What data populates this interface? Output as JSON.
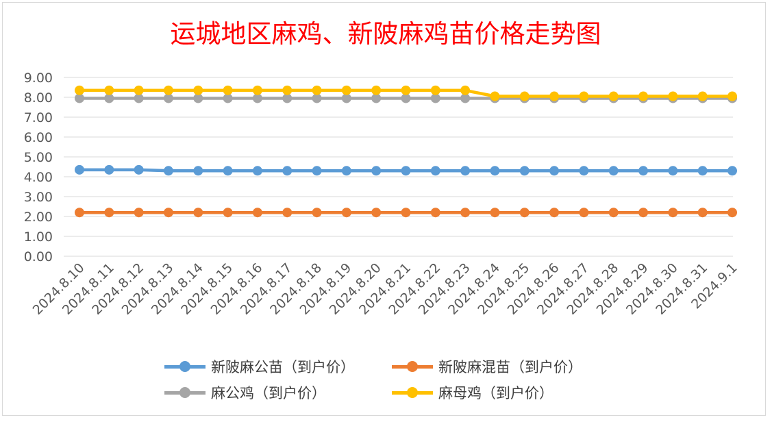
{
  "chart_data": {
    "type": "line",
    "title": "运城地区麻鸡、新陂麻鸡苗价格走势图",
    "title_color": "#ff0000",
    "categories": [
      "2024.8.10",
      "2024.8.11",
      "2024.8.12",
      "2024.8.13",
      "2024.8.14",
      "2024.8.15",
      "2024.8.16",
      "2024.8.17",
      "2024.8.18",
      "2024.8.19",
      "2024.8.20",
      "2024.8.21",
      "2024.8.22",
      "2024.8.23",
      "2024.8.24",
      "2024.8.25",
      "2024.8.26",
      "2024.8.27",
      "2024.8.28",
      "2024.8.29",
      "2024.8.30",
      "2024.8.31",
      "2024.9.1"
    ],
    "ylim": [
      0,
      9
    ],
    "yticks": [
      "0.00",
      "1.00",
      "2.00",
      "3.00",
      "4.00",
      "5.00",
      "6.00",
      "7.00",
      "8.00",
      "9.00"
    ],
    "grid": true,
    "legend_position": "bottom",
    "series": [
      {
        "name": "新陂麻公苗（到户价）",
        "color": "#5b9bd5",
        "values": [
          4.35,
          4.35,
          4.35,
          4.3,
          4.3,
          4.3,
          4.3,
          4.3,
          4.3,
          4.3,
          4.3,
          4.3,
          4.3,
          4.3,
          4.3,
          4.3,
          4.3,
          4.3,
          4.3,
          4.3,
          4.3,
          4.3,
          4.3
        ]
      },
      {
        "name": "新陂麻混苗（到户价）",
        "color": "#ed7d31",
        "values": [
          2.2,
          2.2,
          2.2,
          2.2,
          2.2,
          2.2,
          2.2,
          2.2,
          2.2,
          2.2,
          2.2,
          2.2,
          2.2,
          2.2,
          2.2,
          2.2,
          2.2,
          2.2,
          2.2,
          2.2,
          2.2,
          2.2,
          2.2
        ]
      },
      {
        "name": "麻公鸡（到户价）",
        "color": "#a5a5a5",
        "values": [
          7.95,
          7.95,
          7.95,
          7.95,
          7.95,
          7.95,
          7.95,
          7.95,
          7.95,
          7.95,
          7.95,
          7.95,
          7.95,
          7.95,
          7.95,
          7.95,
          7.95,
          7.95,
          7.95,
          7.95,
          7.95,
          7.95,
          7.95
        ]
      },
      {
        "name": "麻母鸡（到户价）",
        "color": "#ffc000",
        "values": [
          8.35,
          8.35,
          8.35,
          8.35,
          8.35,
          8.35,
          8.35,
          8.35,
          8.35,
          8.35,
          8.35,
          8.35,
          8.35,
          8.35,
          8.05,
          8.05,
          8.05,
          8.05,
          8.05,
          8.05,
          8.05,
          8.05,
          8.05
        ]
      }
    ]
  }
}
